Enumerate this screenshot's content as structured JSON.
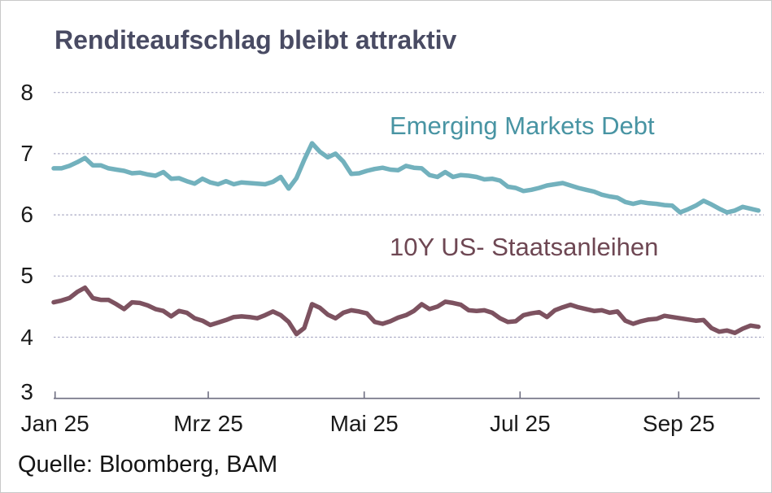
{
  "source": "Quelle: Bloomberg, BAM",
  "colors": {
    "title_text": "#494b63",
    "em_line": "#72b1bd",
    "em_label_text": "#4894a3",
    "ust_line": "#7d5260",
    "ust_label_text": "#6e4753",
    "gridline": "#a7a7c2",
    "axis": "#6e6e80",
    "tick_text": "#1a1a1a",
    "background": "#ffffff",
    "border": "#c9c9c9"
  },
  "chart_data": {
    "type": "line",
    "title": "Renditeaufschlag bleibt attraktiv",
    "xlabel": "",
    "ylabel": "",
    "ylim": [
      3,
      8
    ],
    "y_ticks": [
      8,
      7,
      6,
      5,
      4,
      3
    ],
    "x_tick_labels": [
      "Jan 25",
      "Mrz 25",
      "Mai 25",
      "Jul 25",
      "Sep 25"
    ],
    "grid": "horizontal dashed",
    "legend_position": "inline labels next to lines",
    "x_range_note": "daily values Jan 2025 - early Oct 2025, sampled ~every 3 days",
    "series": [
      {
        "name": "Emerging Markets Debt",
        "color": "#72b1bd",
        "values": [
          6.76,
          6.76,
          6.8,
          6.86,
          6.93,
          6.81,
          6.81,
          6.76,
          6.74,
          6.72,
          6.68,
          6.69,
          6.66,
          6.64,
          6.7,
          6.59,
          6.6,
          6.55,
          6.51,
          6.59,
          6.53,
          6.5,
          6.55,
          6.5,
          6.53,
          6.52,
          6.51,
          6.5,
          6.54,
          6.62,
          6.43,
          6.6,
          6.9,
          7.17,
          7.03,
          6.94,
          7.0,
          6.87,
          6.67,
          6.68,
          6.72,
          6.75,
          6.77,
          6.74,
          6.73,
          6.8,
          6.77,
          6.76,
          6.65,
          6.62,
          6.7,
          6.62,
          6.65,
          6.64,
          6.62,
          6.58,
          6.59,
          6.56,
          6.46,
          6.44,
          6.39,
          6.41,
          6.44,
          6.48,
          6.5,
          6.52,
          6.48,
          6.44,
          6.41,
          6.38,
          6.33,
          6.3,
          6.28,
          6.21,
          6.18,
          6.21,
          6.19,
          6.18,
          6.16,
          6.15,
          6.04,
          6.09,
          6.15,
          6.23,
          6.17,
          6.1,
          6.04,
          6.07,
          6.13,
          6.1,
          6.07
        ]
      },
      {
        "name": "10Y US- Staatsanleihen",
        "color": "#7d5260",
        "values": [
          4.57,
          4.6,
          4.64,
          4.74,
          4.81,
          4.64,
          4.61,
          4.61,
          4.54,
          4.46,
          4.57,
          4.56,
          4.52,
          4.46,
          4.43,
          4.34,
          4.43,
          4.4,
          4.31,
          4.27,
          4.2,
          4.24,
          4.28,
          4.33,
          4.34,
          4.33,
          4.31,
          4.36,
          4.42,
          4.36,
          4.25,
          4.05,
          4.15,
          4.54,
          4.48,
          4.37,
          4.31,
          4.4,
          4.44,
          4.42,
          4.39,
          4.25,
          4.22,
          4.26,
          4.32,
          4.36,
          4.43,
          4.54,
          4.46,
          4.5,
          4.58,
          4.56,
          4.53,
          4.44,
          4.43,
          4.44,
          4.4,
          4.31,
          4.25,
          4.26,
          4.36,
          4.39,
          4.41,
          4.33,
          4.44,
          4.49,
          4.53,
          4.49,
          4.46,
          4.43,
          4.44,
          4.4,
          4.42,
          4.27,
          4.22,
          4.26,
          4.29,
          4.3,
          4.35,
          4.33,
          4.31,
          4.29,
          4.27,
          4.28,
          4.15,
          4.09,
          4.11,
          4.07,
          4.14,
          4.19,
          4.17
        ]
      }
    ]
  }
}
